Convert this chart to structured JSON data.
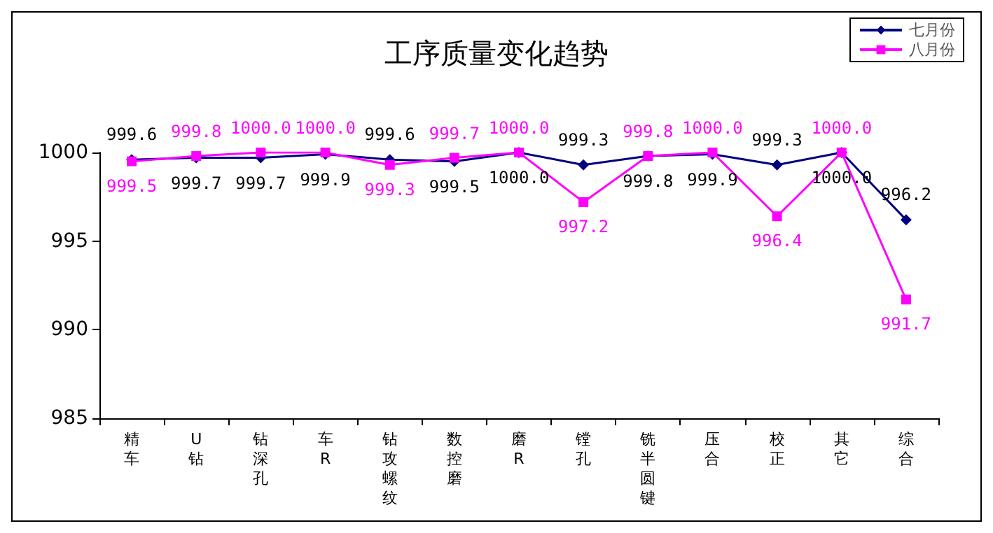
{
  "chart_data": {
    "type": "line",
    "title": "工序质量变化趋势",
    "categories": [
      "精车",
      "U钻",
      "钻深孔",
      "车R",
      "钻攻螺纹",
      "数控磨",
      "磨R",
      "镗孔",
      "铣半圆键",
      "压合",
      "校正",
      "其它",
      "综合"
    ],
    "series": [
      {
        "name": "七月份",
        "color": "#000080",
        "marker": "diamond",
        "values": [
          999.6,
          999.7,
          999.7,
          999.9,
          999.6,
          999.5,
          1000.0,
          999.3,
          999.8,
          999.9,
          999.3,
          1000.0,
          996.2
        ],
        "value_labels": [
          "999.6",
          "999.7",
          "999.7",
          "999.9",
          "999.6",
          "999.5",
          "1000.0",
          "999.3",
          "999.8",
          "999.9",
          "999.3",
          "1000.0",
          "996.2"
        ]
      },
      {
        "name": "八月份",
        "color": "#ff00ff",
        "marker": "square",
        "values": [
          999.5,
          999.8,
          1000.0,
          1000.0,
          999.3,
          999.7,
          1000.0,
          997.2,
          999.8,
          1000.0,
          996.4,
          1000.0,
          991.7
        ],
        "value_labels": [
          "999.5",
          "999.8",
          "1000.0",
          "1000.0",
          "999.3",
          "999.7",
          "1000.0",
          "997.2",
          "999.8",
          "1000.0",
          "996.4",
          "1000.0",
          "991.7"
        ]
      }
    ],
    "ylim": [
      985,
      1000
    ],
    "yticks": [
      985,
      990,
      995,
      1000
    ],
    "grid": false,
    "legend": "top right"
  }
}
